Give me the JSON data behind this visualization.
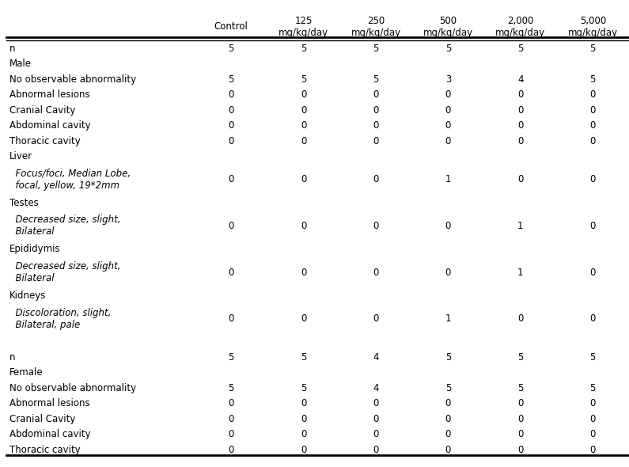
{
  "columns": [
    "Control",
    "125\nmg/kg/day",
    "250\nmg/kg/day",
    "500\nmg/kg/day",
    "2,000\nmg/kg/day",
    "5,000\nmg/kg/day"
  ],
  "rows": [
    {
      "label": "n",
      "indent": 0,
      "italic": false,
      "values": [
        "5",
        "5",
        "5",
        "5",
        "5",
        "5"
      ],
      "separator_before": false
    },
    {
      "label": "Male",
      "indent": 0,
      "italic": false,
      "values": [
        "",
        "",
        "",
        "",
        "",
        ""
      ],
      "separator_before": false
    },
    {
      "label": "No observable abnormality",
      "indent": 0,
      "italic": false,
      "values": [
        "5",
        "5",
        "5",
        "3",
        "4",
        "5"
      ],
      "separator_before": false
    },
    {
      "label": "Abnormal lesions",
      "indent": 0,
      "italic": false,
      "values": [
        "0",
        "0",
        "0",
        "0",
        "0",
        "0"
      ],
      "separator_before": false
    },
    {
      "label": "Cranial Cavity",
      "indent": 0,
      "italic": false,
      "values": [
        "0",
        "0",
        "0",
        "0",
        "0",
        "0"
      ],
      "separator_before": false
    },
    {
      "label": "Abdominal cavity",
      "indent": 0,
      "italic": false,
      "values": [
        "0",
        "0",
        "0",
        "0",
        "0",
        "0"
      ],
      "separator_before": false
    },
    {
      "label": "Thoracic cavity",
      "indent": 0,
      "italic": false,
      "values": [
        "0",
        "0",
        "0",
        "0",
        "0",
        "0"
      ],
      "separator_before": false
    },
    {
      "label": "Liver",
      "indent": 0,
      "italic": false,
      "values": [
        "",
        "",
        "",
        "",
        "",
        ""
      ],
      "separator_before": false
    },
    {
      "label": "  Focus/foci, Median Lobe,\n  focal, yellow, 19*2mm",
      "indent": 1,
      "italic": true,
      "values": [
        "0",
        "0",
        "0",
        "1",
        "0",
        "0"
      ],
      "separator_before": false
    },
    {
      "label": "Testes",
      "indent": 0,
      "italic": false,
      "values": [
        "",
        "",
        "",
        "",
        "",
        ""
      ],
      "separator_before": false
    },
    {
      "label": "  Decreased size, slight,\n  Bilateral",
      "indent": 1,
      "italic": true,
      "values": [
        "0",
        "0",
        "0",
        "0",
        "1",
        "0"
      ],
      "separator_before": false
    },
    {
      "label": "Epididymis",
      "indent": 0,
      "italic": false,
      "values": [
        "",
        "",
        "",
        "",
        "",
        ""
      ],
      "separator_before": false
    },
    {
      "label": "  Decreased size, slight,\n  Bilateral",
      "indent": 1,
      "italic": true,
      "values": [
        "0",
        "0",
        "0",
        "0",
        "1",
        "0"
      ],
      "separator_before": false
    },
    {
      "label": "Kidneys",
      "indent": 0,
      "italic": false,
      "values": [
        "",
        "",
        "",
        "",
        "",
        ""
      ],
      "separator_before": false
    },
    {
      "label": "  Discoloration, slight,\n  Bilateral, pale",
      "indent": 1,
      "italic": true,
      "values": [
        "0",
        "0",
        "0",
        "1",
        "0",
        "0"
      ],
      "separator_before": false
    },
    {
      "label": "",
      "indent": 0,
      "italic": false,
      "values": [
        "",
        "",
        "",
        "",
        "",
        ""
      ],
      "separator_before": false
    },
    {
      "label": "n",
      "indent": 0,
      "italic": false,
      "values": [
        "5",
        "5",
        "4",
        "5",
        "5",
        "5"
      ],
      "separator_before": false
    },
    {
      "label": "Female",
      "indent": 0,
      "italic": false,
      "values": [
        "",
        "",
        "",
        "",
        "",
        ""
      ],
      "separator_before": false
    },
    {
      "label": "No observable abnormality",
      "indent": 0,
      "italic": false,
      "values": [
        "5",
        "5",
        "4",
        "5",
        "5",
        "5"
      ],
      "separator_before": false
    },
    {
      "label": "Abnormal lesions",
      "indent": 0,
      "italic": false,
      "values": [
        "0",
        "0",
        "0",
        "0",
        "0",
        "0"
      ],
      "separator_before": false
    },
    {
      "label": "Cranial Cavity",
      "indent": 0,
      "italic": false,
      "values": [
        "0",
        "0",
        "0",
        "0",
        "0",
        "0"
      ],
      "separator_before": false
    },
    {
      "label": "Abdominal cavity",
      "indent": 0,
      "italic": false,
      "values": [
        "0",
        "0",
        "0",
        "0",
        "0",
        "0"
      ],
      "separator_before": false
    },
    {
      "label": "Thoracic cavity",
      "indent": 0,
      "italic": false,
      "values": [
        "0",
        "0",
        "0",
        "0",
        "0",
        "0"
      ],
      "separator_before": false
    }
  ],
  "bg_color": "#ffffff",
  "text_color": "#000000",
  "font_size": 8.5,
  "header_font_size": 8.5
}
